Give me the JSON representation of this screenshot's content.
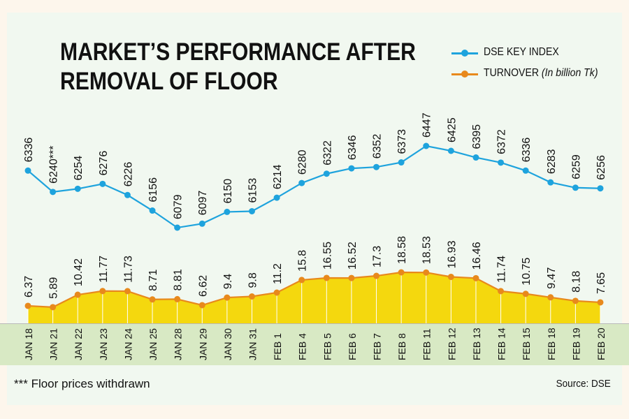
{
  "chart_data": {
    "type": "line",
    "title": "MARKET’S PERFORMANCE AFTER REMOVAL OF FLOOR",
    "title_lines": [
      "MARKET’S PERFORMANCE AFTER",
      "REMOVAL OF FLOOR"
    ],
    "categories": [
      "JAN 18",
      "JAN 21",
      "JAN 22",
      "JAN 23",
      "JAN 24",
      "JAN 25",
      "JAN 28",
      "JAN 29",
      "JAN 30",
      "JAN 31",
      "FEB 1",
      "FEB 4",
      "FEB 5",
      "FEB 6",
      "FEB 7",
      "FEB 8",
      "FEB 11",
      "FEB 12",
      "FEB 13",
      "FEB 14",
      "FEB 15",
      "FEB 18",
      "FEB 19",
      "FEB 20"
    ],
    "series": [
      {
        "name": "DSE KEY INDEX",
        "color": "#1ea3dd",
        "values": [
          6336,
          6240,
          6254,
          6276,
          6226,
          6156,
          6079,
          6097,
          6150,
          6153,
          6214,
          6280,
          6322,
          6346,
          6352,
          6373,
          6447,
          6425,
          6395,
          6372,
          6336,
          6283,
          6259,
          6256
        ],
        "labels": [
          "6336",
          "6240***",
          "6254",
          "6276",
          "6226",
          "6156",
          "6079",
          "6097",
          "6150",
          "6153",
          "6214",
          "6280",
          "6322",
          "6346",
          "6352",
          "6373",
          "6447",
          "6425",
          "6395",
          "6372",
          "6336",
          "6283",
          "6259",
          "6256"
        ]
      },
      {
        "name": "TURNOVER",
        "name_suffix": "(In billion Tk)",
        "color": "#e8891c",
        "fill": "#f4d80e",
        "values": [
          6.37,
          5.89,
          10.42,
          11.77,
          11.73,
          8.71,
          8.81,
          6.62,
          9.4,
          9.8,
          11.2,
          15.8,
          16.55,
          16.52,
          17.3,
          18.58,
          18.53,
          16.93,
          16.46,
          11.74,
          10.75,
          9.47,
          8.18,
          7.65
        ],
        "labels": [
          "6.37",
          "5.89",
          "10.42",
          "11.77",
          "11.73",
          "8.71",
          "8.81",
          "6.62",
          "9.4",
          "9.8",
          "11.2",
          "15.8",
          "16.55",
          "16.52",
          "17.3",
          "18.58",
          "18.53",
          "16.93",
          "16.46",
          "11.74",
          "10.75",
          "9.47",
          "8.18",
          "7.65"
        ]
      }
    ],
    "index_range": [
      6079,
      6447
    ],
    "turnover_range": [
      0,
      18.58
    ],
    "legend_position": "top-right",
    "grid": false,
    "footnote": "*** Floor prices withdrawn",
    "source": "Source: DSE"
  }
}
